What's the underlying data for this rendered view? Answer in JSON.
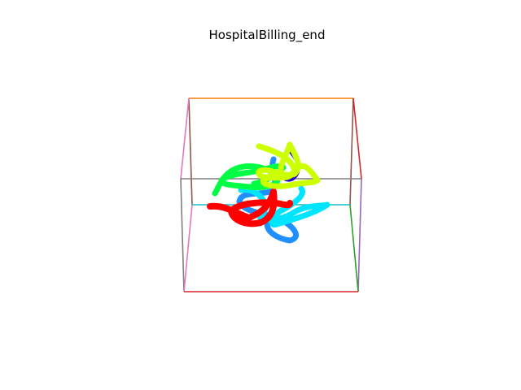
{
  "figure": {
    "title": "HospitalBilling_end"
  },
  "colors": {
    "background": "#ffffff",
    "trajectory_colors": [
      "#ff0000",
      "#00ff44",
      "#ccff00",
      "#00e5ff",
      "#1e90ff",
      "#2200cc"
    ],
    "box_edge_colors": [
      "#ff7f0e",
      "#8c564b",
      "#7f7f7f",
      "#e377c2",
      "#9467bd",
      "#d62728",
      "#2ca02c",
      "#17becf"
    ]
  },
  "scene": {
    "type": "3d-trajectory-plot",
    "trajectory_count": 6
  }
}
